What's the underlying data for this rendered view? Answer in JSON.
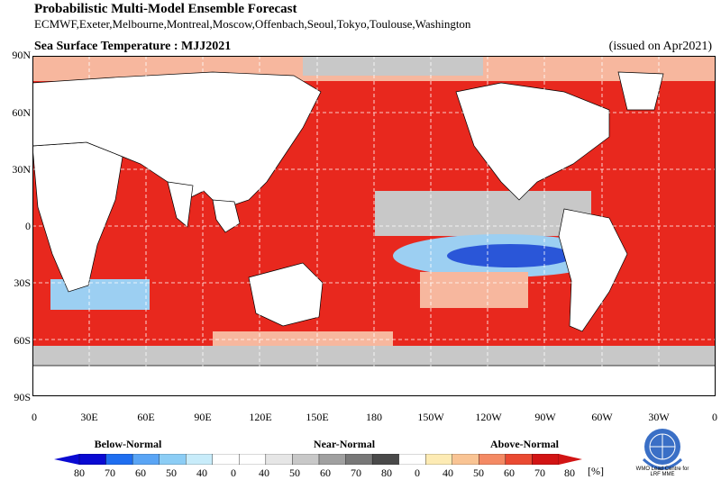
{
  "header": {
    "title": "Probabilistic Multi-Model Ensemble Forecast",
    "subtitle": "ECMWF,Exeter,Melbourne,Montreal,Moscow,Offenbach,Seoul,Tokyo,Toulouse,Washington"
  },
  "map": {
    "title": "Sea Surface Temperature : MJJ2021",
    "issued": "(issued on Apr2021)",
    "lat_labels": [
      "90N",
      "60N",
      "30N",
      "0",
      "30S",
      "60S",
      "90S"
    ],
    "lon_labels": [
      "0",
      "30E",
      "60E",
      "90E",
      "120E",
      "150E",
      "180",
      "150W",
      "120W",
      "90W",
      "60W",
      "30W",
      "0"
    ],
    "colors": {
      "land": "#ffffff",
      "ocean_warm": "#e8281e",
      "ocean_warm_light": "#f7b79e",
      "ocean_near_normal": "#c8c8c8",
      "ocean_cold": "#2a56d8",
      "ocean_cold_light": "#9ccff2",
      "grid": "#ffffff"
    }
  },
  "legend": {
    "below_label": "Below-Normal",
    "near_label": "Near-Normal",
    "above_label": "Above-Normal",
    "ticks": [
      "80",
      "70",
      "60",
      "50",
      "40",
      "0",
      "40",
      "50",
      "60",
      "70",
      "80",
      "0",
      "40",
      "50",
      "60",
      "70",
      "80"
    ],
    "unit": "[%]",
    "colors": [
      "#0a0ad2",
      "#1f6ef0",
      "#5aa5f5",
      "#8ccdf5",
      "#c8ecfa",
      "#ffffff",
      "#ffffff",
      "#e6e6e6",
      "#c8c8c8",
      "#a0a0a0",
      "#787878",
      "#4a4a4a",
      "#ffffff",
      "#fdebb4",
      "#f9c494",
      "#f48a64",
      "#ea4a32",
      "#d21414"
    ]
  },
  "logo": {
    "caption_line1": "WMO Lead Centre for",
    "caption_line2": "LRF MME"
  }
}
